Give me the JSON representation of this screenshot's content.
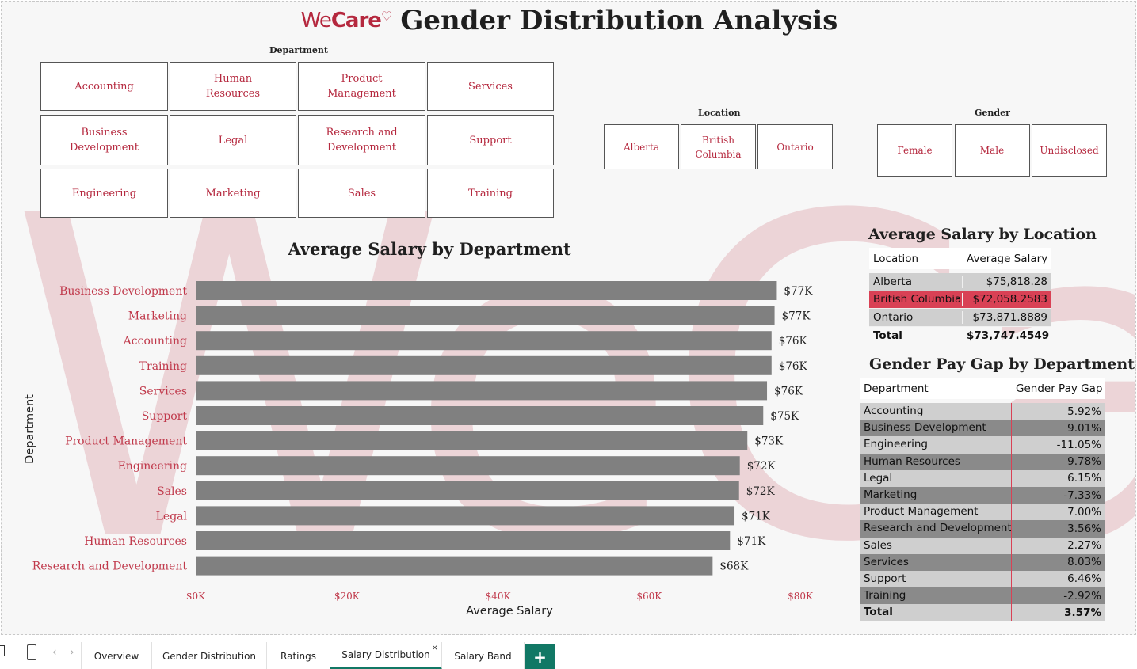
{
  "header": {
    "brand_we": "We",
    "brand_care": "Care",
    "brand_heart": "♡",
    "title": "Gender Distribution Analysis"
  },
  "watermark": {
    "text": "WeCare♡"
  },
  "slicers": {
    "department": {
      "label": "Department",
      "items": [
        "Accounting",
        "Human Resources",
        "Product Management",
        "Services",
        "Business Development",
        "Legal",
        "Research and Development",
        "Support",
        "Engineering",
        "Marketing",
        "Sales",
        "Training"
      ]
    },
    "location": {
      "label": "Location",
      "items": [
        "Alberta",
        "British Columbia",
        "Ontario"
      ]
    },
    "gender": {
      "label": "Gender",
      "items": [
        "Female",
        "Male",
        "Undisclosed"
      ]
    }
  },
  "chart_data": {
    "type": "bar",
    "orientation": "horizontal",
    "title": "Average Salary by Department",
    "xlabel": "Average Salary",
    "ylabel": "Department",
    "xlim": [
      0,
      80000
    ],
    "xticks": [
      "$0K",
      "$20K",
      "$40K",
      "$60K",
      "$80K"
    ],
    "xtick_values": [
      0,
      20000,
      40000,
      60000,
      80000
    ],
    "categories": [
      "Business Development",
      "Marketing",
      "Accounting",
      "Training",
      "Services",
      "Support",
      "Product Management",
      "Engineering",
      "Sales",
      "Legal",
      "Human Resources",
      "Research and Development"
    ],
    "values": [
      76900,
      76600,
      76200,
      76200,
      75600,
      75100,
      73000,
      72000,
      71900,
      71300,
      70700,
      68400
    ],
    "labels": [
      "$77K",
      "$77K",
      "$76K",
      "$76K",
      "$76K",
      "$75K",
      "$73K",
      "$72K",
      "$72K",
      "$71K",
      "$71K",
      "$68K"
    ],
    "bar_color": "#808080",
    "label_color": "#c0394b",
    "grid": false
  },
  "location_table": {
    "title": "Average Salary by Location",
    "headers": [
      "Location",
      "Average Salary"
    ],
    "rows": [
      {
        "location": "Alberta",
        "salary": "$75,818.28",
        "highlight": false
      },
      {
        "location": "British Columbia",
        "salary": "$72,058.2583",
        "highlight": true
      },
      {
        "location": "Ontario",
        "salary": "$73,871.8889",
        "highlight": false
      }
    ],
    "total_label": "Total",
    "total_value": "$73,747.4549",
    "highlight_color": "#d94155",
    "row_color": "#cfcfcf"
  },
  "paygap_table": {
    "title": "Gender Pay Gap by Department",
    "headers": [
      "Department",
      "Gender Pay Gap"
    ],
    "rows": [
      {
        "department": "Accounting",
        "gap": "5.92%"
      },
      {
        "department": "Business Development",
        "gap": "9.01%"
      },
      {
        "department": "Engineering",
        "gap": "-11.05%"
      },
      {
        "department": "Human Resources",
        "gap": "9.78%"
      },
      {
        "department": "Legal",
        "gap": "6.15%"
      },
      {
        "department": "Marketing",
        "gap": "-7.33%"
      },
      {
        "department": "Product Management",
        "gap": "7.00%"
      },
      {
        "department": "Research and Development",
        "gap": "3.56%"
      },
      {
        "department": "Sales",
        "gap": "2.27%"
      },
      {
        "department": "Services",
        "gap": "8.03%"
      },
      {
        "department": "Support",
        "gap": "6.46%"
      },
      {
        "department": "Training",
        "gap": "-2.92%"
      }
    ],
    "total_label": "Total",
    "total_value": "3.57%",
    "light_color": "#cfcfcf",
    "dark_color": "#8a8a8a",
    "divider_color": "#d94155"
  },
  "tabs": {
    "items": [
      "Overview",
      "Gender Distribution",
      "Ratings",
      "Salary Distribution",
      "Salary Band"
    ],
    "active": "Salary Distribution",
    "close_glyph": "×",
    "add_glyph": "+",
    "nav_prev": "‹",
    "nav_next": "›",
    "accent": "#117865"
  }
}
